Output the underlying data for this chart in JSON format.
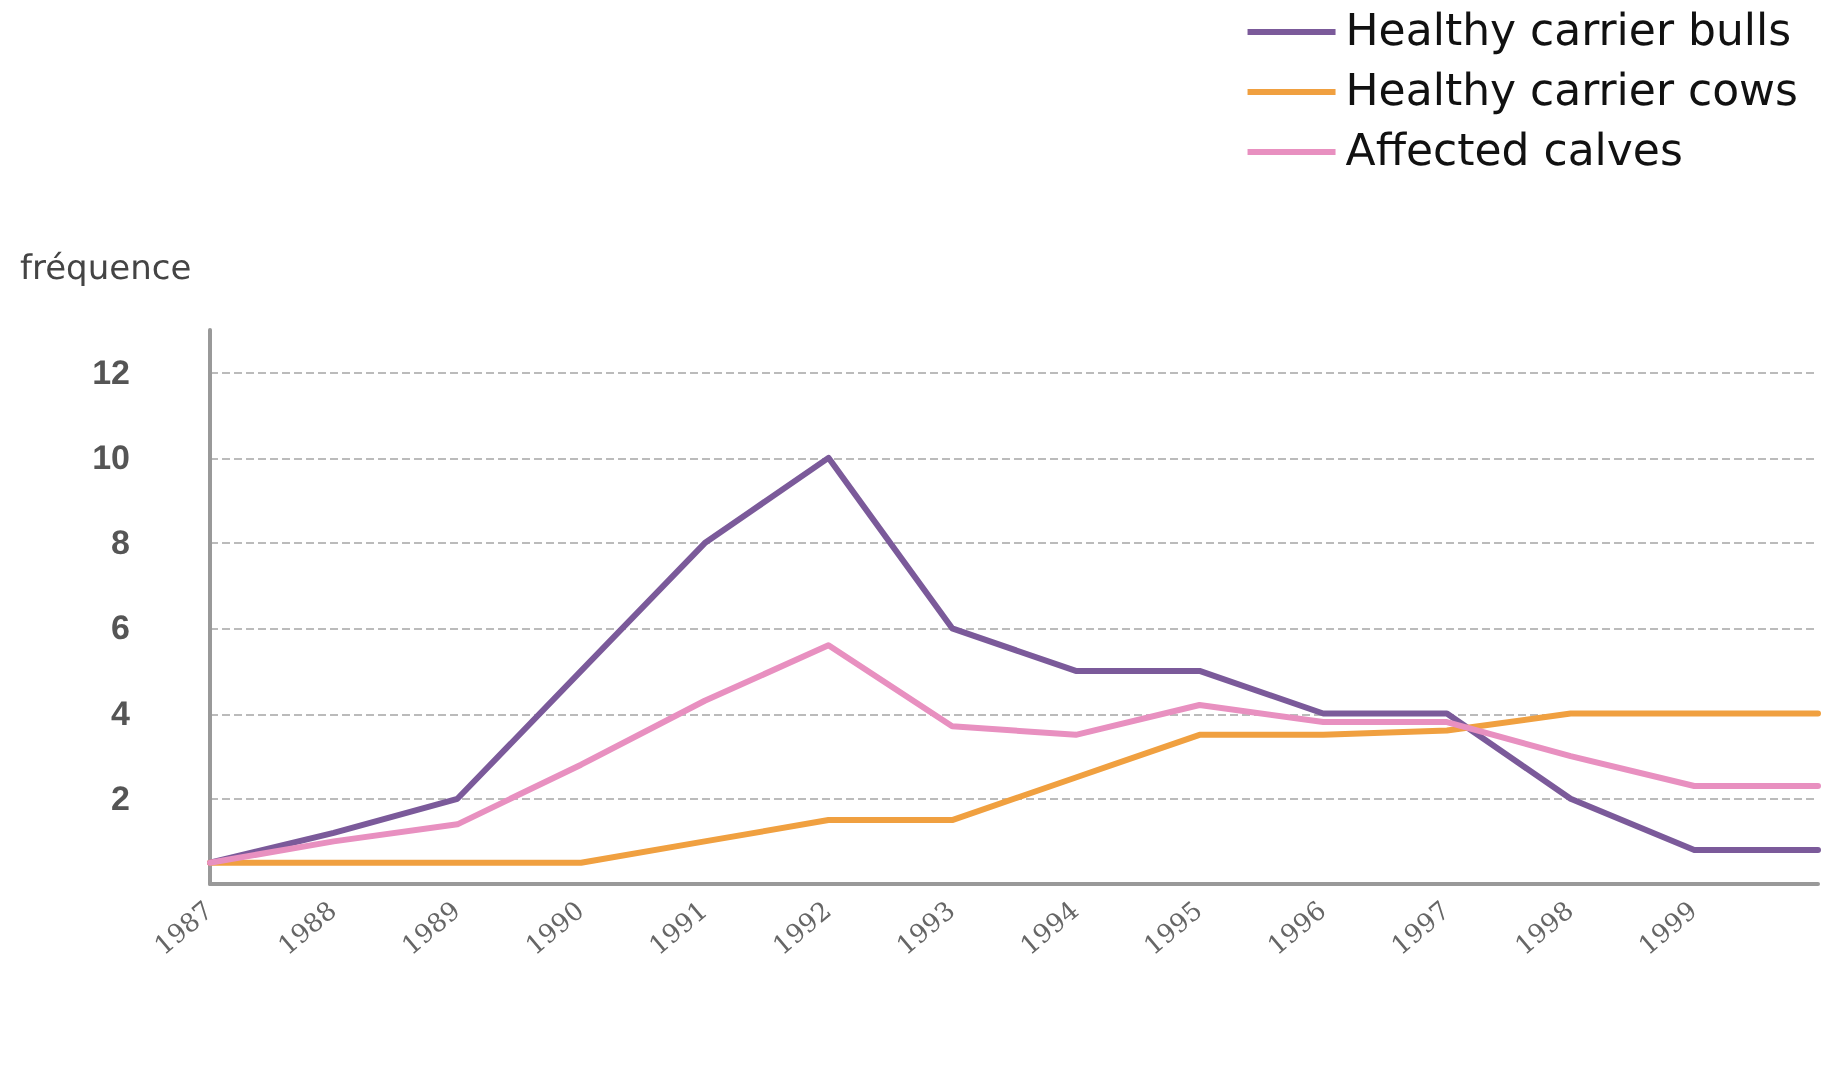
{
  "chart_data": {
    "type": "line",
    "ylabel": "fréquence",
    "categories": [
      "1987",
      "1988",
      "1989",
      "1990",
      "1991",
      "1992",
      "1993",
      "1994",
      "1995",
      "1996",
      "1997",
      "1998",
      "1999",
      null
    ],
    "series": [
      {
        "name": "Healthy carrier bulls",
        "color": "#7b5a9a",
        "values": [
          0.5,
          1.2,
          2,
          5,
          8,
          10,
          6,
          5,
          5,
          4,
          4,
          2,
          0.8,
          0.8
        ]
      },
      {
        "name": "Healthy carrier cows",
        "color": "#f0a040",
        "values": [
          0.5,
          0.5,
          0.5,
          0.5,
          1,
          1.5,
          1.5,
          2.5,
          3.5,
          3.5,
          3.6,
          4,
          4,
          4
        ]
      },
      {
        "name": "Affected calves",
        "color": "#e890c0",
        "values": [
          0.5,
          1,
          1.4,
          2.8,
          4.3,
          5.6,
          3.7,
          3.5,
          4.2,
          3.8,
          3.8,
          3,
          2.3,
          2.3
        ]
      }
    ],
    "ylim": [
      0,
      13
    ],
    "yticks": [
      2,
      4,
      6,
      8,
      10,
      12
    ],
    "grid": "y",
    "legend": "top right",
    "marker": "none",
    "line_style": "solid"
  }
}
